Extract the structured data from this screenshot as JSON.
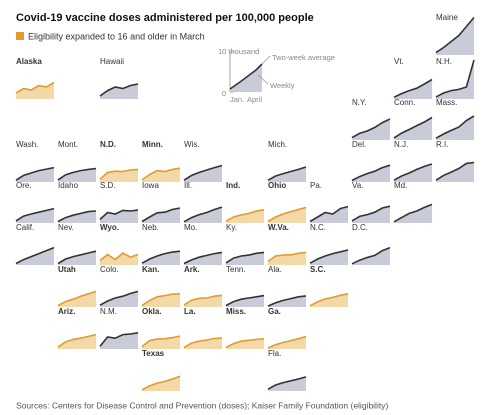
{
  "chart_data": {
    "type": "area",
    "title": "Covid-19 vaccine doses administered per 100,000 people",
    "legend": {
      "label": "Eligibility expanded to 16 and older in March",
      "color": "#e39b2e"
    },
    "default_color": "#333333",
    "key": {
      "yticks": [
        0,
        {
          "value": 10000,
          "label": "10 thousand"
        }
      ],
      "xticks": [
        "Jan.",
        "April"
      ],
      "line_labels": [
        "Two-week average",
        "Weekly"
      ]
    },
    "ylim": [
      0,
      10000
    ],
    "source": "Sources: Centers for Disease Control and Prevention (doses); Kaiser Family Foundation (eligibility)",
    "series": [
      {
        "name": "Maine",
        "color": "#333333",
        "values": [
          800,
          2500,
          4500,
          6500,
          9500,
          12500
        ]
      },
      {
        "name": "Alaska",
        "color": "#e39b2e",
        "values": [
          2000,
          3500,
          3000,
          4500,
          4000,
          5500
        ]
      },
      {
        "name": "Hawaii",
        "color": "#333333",
        "values": [
          1000,
          2800,
          4000,
          3500,
          4500,
          5000
        ]
      },
      {
        "name": "Vt.",
        "color": "#333333",
        "values": [
          600,
          1800,
          2800,
          3600,
          5000,
          6500
        ]
      },
      {
        "name": "N.H.",
        "color": "#333333",
        "values": [
          700,
          2000,
          2800,
          3200,
          4000,
          13000
        ]
      },
      {
        "name": "N.Y.",
        "color": "#333333",
        "values": [
          800,
          2200,
          3000,
          4200,
          5800,
          7000
        ]
      },
      {
        "name": "Conn.",
        "color": "#333333",
        "values": [
          700,
          2300,
          3500,
          4800,
          6000,
          7500
        ]
      },
      {
        "name": "Mass.",
        "color": "#333333",
        "values": [
          600,
          2000,
          3200,
          4300,
          6500,
          8000
        ]
      },
      {
        "name": "Wash.",
        "color": "#333333",
        "values": [
          600,
          2200,
          3000,
          3800,
          4300,
          4800
        ]
      },
      {
        "name": "Mont.",
        "color": "#333333",
        "values": [
          700,
          2400,
          3200,
          3800,
          4200,
          4500
        ]
      },
      {
        "name": "N.D.",
        "color": "#e39b2e",
        "values": [
          900,
          3200,
          3600,
          3500,
          4000,
          4200
        ]
      },
      {
        "name": "Minn.",
        "color": "#e39b2e",
        "values": [
          700,
          2500,
          3800,
          3500,
          4200,
          4600
        ]
      },
      {
        "name": "Wis.",
        "color": "#333333",
        "values": [
          600,
          2200,
          3200,
          4000,
          4800,
          5500
        ]
      },
      {
        "name": "Mich.",
        "color": "#333333",
        "values": [
          600,
          2000,
          2800,
          3500,
          4200,
          5000
        ]
      },
      {
        "name": "Del.",
        "color": "#333333",
        "values": [
          500,
          1800,
          2800,
          3600,
          4800,
          5600
        ]
      },
      {
        "name": "N.J.",
        "color": "#333333",
        "values": [
          600,
          2000,
          3000,
          4200,
          5200,
          6000
        ]
      },
      {
        "name": "R.I.",
        "color": "#333333",
        "values": [
          600,
          2200,
          3300,
          4500,
          6200,
          6500
        ]
      },
      {
        "name": "Ore.",
        "color": "#333333",
        "values": [
          700,
          2300,
          3000,
          3600,
          4200,
          4800
        ]
      },
      {
        "name": "Idaho",
        "color": "#333333",
        "values": [
          500,
          1800,
          2600,
          3200,
          3800,
          4000
        ]
      },
      {
        "name": "S.D.",
        "color": "#333333",
        "values": [
          1200,
          3500,
          3000,
          4200,
          4000,
          4300
        ]
      },
      {
        "name": "Iowa",
        "color": "#333333",
        "values": [
          500,
          2000,
          3400,
          3600,
          4500,
          5000
        ]
      },
      {
        "name": "Ill.",
        "color": "#333333",
        "values": [
          400,
          1800,
          2800,
          3500,
          4500,
          5300
        ]
      },
      {
        "name": "Ind.",
        "color": "#e39b2e",
        "values": [
          600,
          2000,
          2700,
          3200,
          4000,
          4400
        ]
      },
      {
        "name": "Ohio",
        "color": "#e39b2e",
        "values": [
          500,
          2000,
          3000,
          3800,
          4500,
          5200
        ]
      },
      {
        "name": "Pa.",
        "color": "#333333",
        "values": [
          500,
          2000,
          3500,
          3000,
          4800,
          5500
        ]
      },
      {
        "name": "Va.",
        "color": "#333333",
        "values": [
          700,
          2200,
          2800,
          3600,
          5000,
          5600
        ]
      },
      {
        "name": "Md.",
        "color": "#333333",
        "values": [
          400,
          1800,
          3200,
          4000,
          5200,
          6200
        ]
      },
      {
        "name": "Calif.",
        "color": "#333333",
        "values": [
          500,
          1800,
          2800,
          3800,
          4800,
          5800
        ]
      },
      {
        "name": "Nev.",
        "color": "#333333",
        "values": [
          500,
          2000,
          2800,
          3400,
          4000,
          4600
        ]
      },
      {
        "name": "Wyo.",
        "color": "#e39b2e",
        "values": [
          1500,
          3500,
          1800,
          4000,
          2600,
          3500
        ]
      },
      {
        "name": "Neb.",
        "color": "#333333",
        "values": [
          600,
          2000,
          3000,
          3800,
          4300,
          4600
        ]
      },
      {
        "name": "Mo.",
        "color": "#333333",
        "values": [
          500,
          1700,
          2600,
          3200,
          3800,
          4200
        ]
      },
      {
        "name": "Ky.",
        "color": "#333333",
        "values": [
          700,
          2300,
          3000,
          3300,
          3900,
          4200
        ]
      },
      {
        "name": "W.Va.",
        "color": "#e39b2e",
        "values": [
          1200,
          3000,
          3300,
          3400,
          3900,
          4200
        ]
      },
      {
        "name": "N.C.",
        "color": "#333333",
        "values": [
          600,
          2000,
          3000,
          3800,
          4400,
          5000
        ]
      },
      {
        "name": "D.C.",
        "color": "#333333",
        "values": [
          400,
          1600,
          2500,
          3200,
          4800,
          5800
        ]
      },
      {
        "name": "Utah",
        "color": "#e39b2e",
        "values": [
          500,
          1800,
          2600,
          3600,
          4400,
          5200
        ]
      },
      {
        "name": "Colo.",
        "color": "#333333",
        "values": [
          600,
          2000,
          3000,
          3600,
          4500,
          5200
        ]
      },
      {
        "name": "Kan.",
        "color": "#e39b2e",
        "values": [
          500,
          2200,
          3400,
          3800,
          4300,
          4400
        ]
      },
      {
        "name": "Ark.",
        "color": "#e39b2e",
        "values": [
          700,
          2300,
          2900,
          3000,
          3600,
          3900
        ]
      },
      {
        "name": "Tenn.",
        "color": "#333333",
        "values": [
          500,
          1800,
          2600,
          3000,
          3400,
          3800
        ]
      },
      {
        "name": "Ala.",
        "color": "#333333",
        "values": [
          300,
          1400,
          2200,
          2800,
          3400,
          3700
        ]
      },
      {
        "name": "S.C.",
        "color": "#e39b2e",
        "values": [
          400,
          1700,
          2700,
          3200,
          3900,
          4400
        ]
      },
      {
        "name": "Ariz.",
        "color": "#e39b2e",
        "values": [
          600,
          2400,
          3200,
          3600,
          4200,
          4800
        ]
      },
      {
        "name": "N.M.",
        "color": "#333333",
        "values": [
          900,
          4000,
          3600,
          4800,
          5000,
          5400
        ]
      },
      {
        "name": "Okla.",
        "color": "#e39b2e",
        "values": [
          800,
          2800,
          3300,
          3400,
          3800,
          4300
        ]
      },
      {
        "name": "La.",
        "color": "#e39b2e",
        "values": [
          500,
          2000,
          2600,
          3000,
          3500,
          3700
        ]
      },
      {
        "name": "Miss.",
        "color": "#e39b2e",
        "values": [
          500,
          1800,
          2600,
          2900,
          3200,
          3400
        ]
      },
      {
        "name": "Ga.",
        "color": "#e39b2e",
        "values": [
          300,
          1400,
          2200,
          2800,
          3400,
          4200
        ]
      },
      {
        "name": "Texas",
        "color": "#e39b2e",
        "values": [
          400,
          1700,
          2600,
          3200,
          4000,
          4900
        ]
      },
      {
        "name": "Fla.",
        "color": "#333333",
        "values": [
          600,
          2000,
          2800,
          3400,
          4000,
          4700
        ]
      }
    ]
  }
}
